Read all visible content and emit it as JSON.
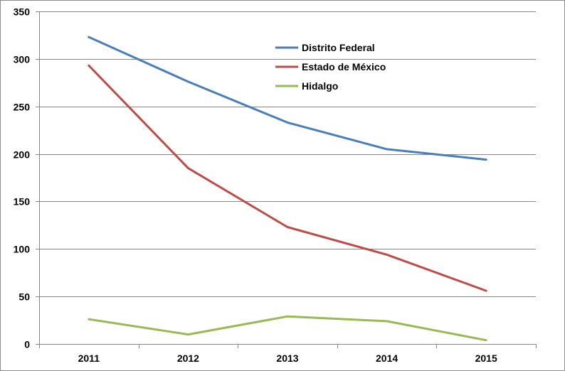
{
  "chart_data": {
    "type": "line",
    "title": "",
    "xlabel": "",
    "ylabel": "",
    "categories": [
      "2011",
      "2012",
      "2013",
      "2014",
      "2015"
    ],
    "ylim": [
      0,
      350
    ],
    "yticks": [
      0,
      50,
      100,
      150,
      200,
      250,
      300,
      350
    ],
    "ytick_labels": [
      "0",
      "50",
      "100",
      "150",
      "200",
      "250",
      "300",
      "350"
    ],
    "grid": true,
    "legend_position": "top-center",
    "series": [
      {
        "name": "Distrito Federal",
        "color": "#4a7ebb",
        "values": [
          323,
          276,
          233,
          205,
          194
        ]
      },
      {
        "name": "Estado de México",
        "color": "#be4b48",
        "values": [
          293,
          185,
          123,
          94,
          56
        ]
      },
      {
        "name": "Hidalgo",
        "color": "#98b954",
        "values": [
          26,
          10,
          29,
          24,
          4
        ]
      }
    ]
  }
}
